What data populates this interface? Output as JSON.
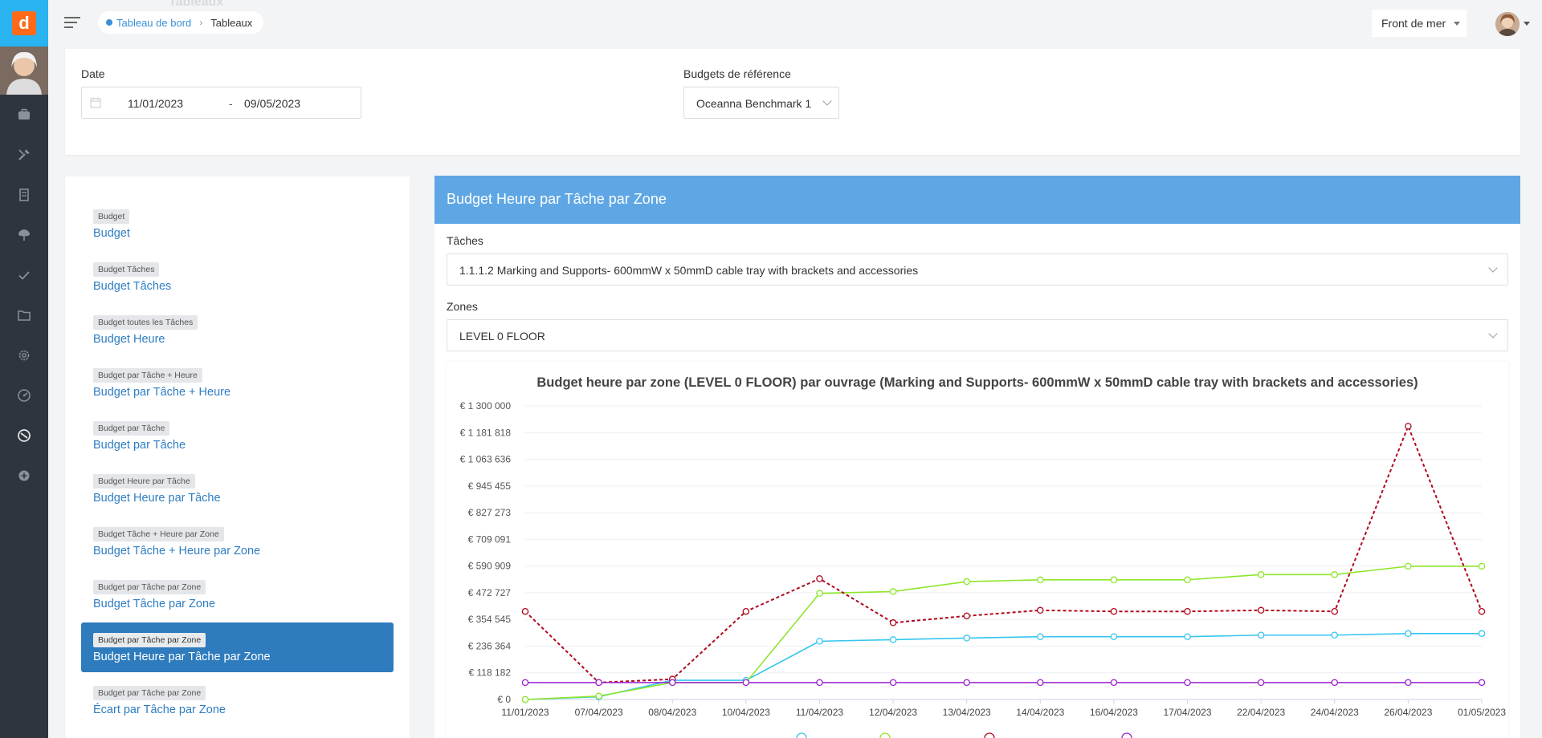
{
  "topbar": {
    "faded_title": "Tableaux",
    "breadcrumb": {
      "home": "Tableau de bord",
      "current": "Tableaux"
    },
    "site_select": "Front de mer"
  },
  "filters": {
    "date_label": "Date",
    "date_start": "11/01/2023",
    "date_separator": "-",
    "date_end": "09/05/2023",
    "budget_ref_label": "Budgets de référence",
    "budget_ref_value": "Oceanna Benchmark 1"
  },
  "sidebar_icons": [
    "briefcase-icon",
    "tools-icon",
    "building-icon",
    "tree-icon",
    "check-icon",
    "folder-icon",
    "gear-icon",
    "gauge-icon",
    "dashboard-icon",
    "plus-circle-icon"
  ],
  "report_list": [
    {
      "tag": "Budget",
      "name": "Budget"
    },
    {
      "tag": "Budget Tâches",
      "name": "Budget Tâches"
    },
    {
      "tag": "Budget toutes les Tâches",
      "name": "Budget Heure"
    },
    {
      "tag": "Budget par Tâche + Heure",
      "name": "Budget par Tâche + Heure"
    },
    {
      "tag": "Budget par Tâche",
      "name": "Budget par Tâche"
    },
    {
      "tag": "Budget Heure par Tâche",
      "name": "Budget Heure par Tâche"
    },
    {
      "tag": "Budget Tâche + Heure par Zone",
      "name": "Budget Tâche + Heure par Zone"
    },
    {
      "tag": "Budget par Tâche par Zone",
      "name": "Budget Tâche par Zone"
    },
    {
      "tag": "Budget par Tâche par Zone",
      "name": "Budget Heure par Tâche par Zone",
      "active": true
    },
    {
      "tag": "Budget par Tâche par Zone",
      "name": "Écart par Tâche par Zone"
    }
  ],
  "panel": {
    "title": "Budget Heure par Tâche par Zone",
    "tasks_label": "Tâches",
    "tasks_value": "1.1.1.2 Marking and Supports- 600mmW x 50mmD cable tray with brackets and accessories",
    "zones_label": "Zones",
    "zones_value": "LEVEL 0 FLOOR"
  },
  "chart_data": {
    "type": "line",
    "title": "Budget heure par zone (LEVEL 0 FLOOR) par ouvrage (Marking and Supports- 600mmW x 50mmD cable tray with brackets and accessories)",
    "categories": [
      "11/01/2023",
      "07/04/2023",
      "08/04/2023",
      "10/04/2023",
      "11/04/2023",
      "12/04/2023",
      "13/04/2023",
      "14/04/2023",
      "16/04/2023",
      "17/04/2023",
      "22/04/2023",
      "24/04/2023",
      "26/04/2023",
      "01/05/2023"
    ],
    "y_ticks": [
      "€ 0",
      "€ 118 182",
      "€ 236 364",
      "€ 354 545",
      "€ 472 727",
      "€ 590 909",
      "€ 709 091",
      "€ 827 273",
      "€ 945 455",
      "€ 1 063 636",
      "€ 1 181 818",
      "€ 1 300 000"
    ],
    "ylim": [
      0,
      1300000
    ],
    "grid": true,
    "legend_position": "bottom",
    "series": [
      {
        "color": "#35c5f0",
        "dashed": false,
        "values": [
          0,
          12000,
          85000,
          85000,
          258000,
          265000,
          272000,
          278000,
          278000,
          278000,
          285000,
          285000,
          292000,
          292000
        ]
      },
      {
        "color": "#8ee62a",
        "dashed": false,
        "values": [
          0,
          15000,
          75000,
          75000,
          470000,
          478000,
          522000,
          530000,
          530000,
          530000,
          553000,
          553000,
          590000,
          590000
        ]
      },
      {
        "color": "#b0081e",
        "dashed": true,
        "values": [
          390000,
          75000,
          90000,
          390000,
          535000,
          340000,
          370000,
          395000,
          390000,
          390000,
          395000,
          390000,
          1210000,
          390000
        ]
      },
      {
        "color": "#9b1fd0",
        "dashed": false,
        "values": [
          75000,
          75000,
          75000,
          75000,
          75000,
          75000,
          75000,
          75000,
          75000,
          75000,
          75000,
          75000,
          75000,
          75000
        ]
      }
    ]
  }
}
